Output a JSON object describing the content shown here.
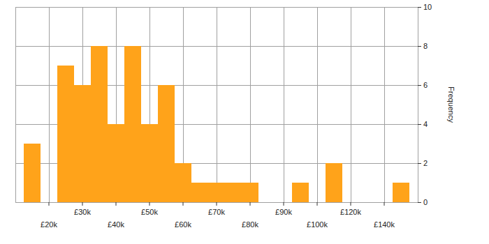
{
  "chart_data": {
    "type": "bar",
    "categories": [
      null,
      "£20k",
      null,
      "£30k",
      null,
      "£40k",
      null,
      "£50k",
      null,
      "£60k",
      null,
      "£70k",
      null,
      "£80k",
      null,
      "£90k",
      null,
      "£100k",
      null,
      "£120k",
      null,
      "£140k",
      null
    ],
    "values": [
      3,
      0,
      7,
      6,
      8,
      4,
      8,
      4,
      6,
      2,
      1,
      1,
      1,
      1,
      0,
      0,
      1,
      0,
      2,
      0,
      0,
      0,
      1
    ],
    "color": "#ffa31a",
    "y_label": "Frequency",
    "ylim": [
      0,
      10
    ],
    "yticks": [
      0,
      2,
      4,
      6,
      8,
      10
    ],
    "grid": true
  }
}
